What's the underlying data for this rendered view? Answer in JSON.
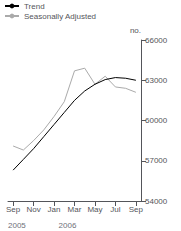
{
  "chart_data": {
    "type": "line",
    "ylabel": "no.",
    "categories": [
      "Sep",
      null,
      "Nov",
      null,
      "Jan",
      null,
      "Mar",
      null,
      "May",
      null,
      "Jul",
      null,
      "Sep"
    ],
    "series": [
      {
        "name": "Seasonally Adjusted",
        "color": "#aaaaaa",
        "values": [
          58100,
          57800,
          58500,
          59300,
          60300,
          61400,
          63700,
          63900,
          62700,
          63300,
          62500,
          62400,
          62100
        ]
      },
      {
        "name": "Trend",
        "color": "#000000",
        "values": [
          56300,
          57100,
          57900,
          58800,
          59700,
          60600,
          61500,
          62200,
          62700,
          63050,
          63200,
          63150,
          63000
        ]
      }
    ],
    "ylim": [
      54000,
      66000
    ],
    "yticks": [
      54000,
      57000,
      60000,
      63000,
      66000
    ],
    "annotations": [
      "2005",
      "2006"
    ],
    "legend": "upper left",
    "grid": false
  }
}
